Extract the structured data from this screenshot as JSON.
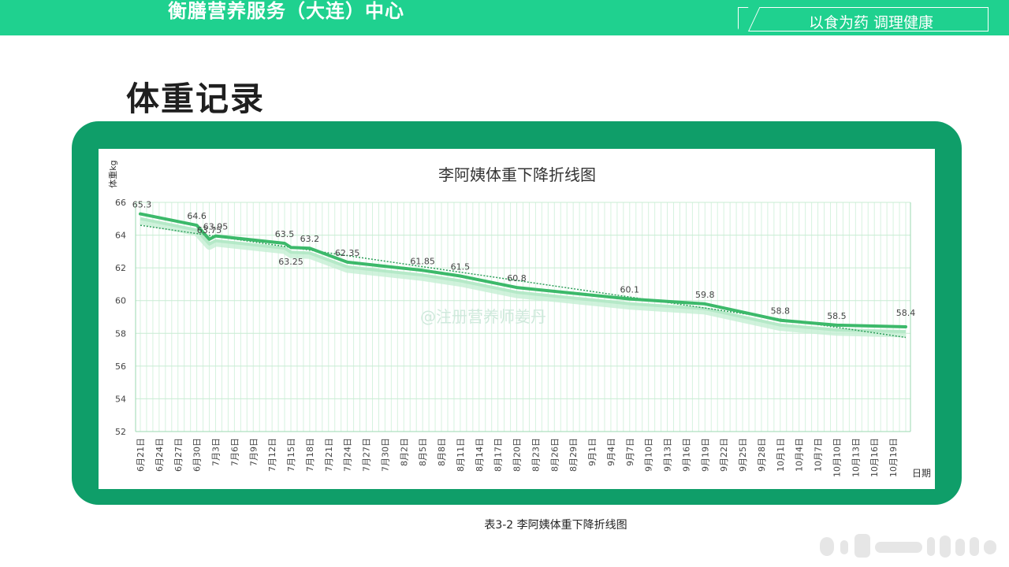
{
  "header": {
    "org_name": "衡膳营养服务（大连）中心",
    "slogan": "以食为药 调理健康",
    "bg_color": "#1fd18f"
  },
  "page": {
    "title": "体重记录",
    "caption": "表3-2    李阿姨体重下降折线图",
    "frame_color": "#0f9e69"
  },
  "chart_data": {
    "type": "line",
    "title": "李阿姨体重下降折线图",
    "ylabel": "体重kg",
    "xlabel": "日期",
    "ylim": [
      52,
      66
    ],
    "y_ticks": [
      52,
      54,
      56,
      58,
      60,
      62,
      64,
      66
    ],
    "grid": true,
    "trendline": true,
    "watermark": "@注册营养师姜丹",
    "line_color": "#3cb96a",
    "x_ticks": [
      "6月21日",
      "6月24日",
      "6月27日",
      "6月30日",
      "7月3日",
      "7月6日",
      "7月9日",
      "7月12日",
      "7月15日",
      "7月18日",
      "7月21日",
      "7月24日",
      "7月27日",
      "7月30日",
      "8月2日",
      "8月5日",
      "8月8日",
      "8月11日",
      "8月14日",
      "8月17日",
      "8月20日",
      "8月23日",
      "8月26日",
      "8月29日",
      "9月1日",
      "9月4日",
      "9月7日",
      "9月10日",
      "9月13日",
      "9月16日",
      "9月19日",
      "9月22日",
      "9月25日",
      "9月28日",
      "10月1日",
      "10月4日",
      "10月7日",
      "10月10日",
      "10月13日",
      "10月16日",
      "10月19日"
    ],
    "points": [
      {
        "x": "6月21日",
        "y": 65.3,
        "label": "65.3"
      },
      {
        "x": "6月30日",
        "y": 64.6,
        "label": "64.6"
      },
      {
        "x": "7月2日",
        "y": 63.75,
        "label": "63.75"
      },
      {
        "x": "7月3日",
        "y": 63.95,
        "label": "63.95"
      },
      {
        "x": "7月14日",
        "y": 63.5,
        "label": "63.5"
      },
      {
        "x": "7月15日",
        "y": 63.25,
        "label": "63.25"
      },
      {
        "x": "7月18日",
        "y": 63.2,
        "label": "63.2"
      },
      {
        "x": "7月24日",
        "y": 62.35,
        "label": "62.35"
      },
      {
        "x": "8月5日",
        "y": 61.85,
        "label": "61.85"
      },
      {
        "x": "8月11日",
        "y": 61.5,
        "label": "61.5"
      },
      {
        "x": "8月20日",
        "y": 60.8,
        "label": "60.8"
      },
      {
        "x": "9月7日",
        "y": 60.1,
        "label": "60.1"
      },
      {
        "x": "9月19日",
        "y": 59.8,
        "label": "59.8"
      },
      {
        "x": "10月1日",
        "y": 58.8,
        "label": "58.8"
      },
      {
        "x": "10月10日",
        "y": 58.5,
        "label": "58.5"
      },
      {
        "x": "10月21日",
        "y": 58.4,
        "label": "58.4"
      }
    ],
    "trend": {
      "start": 64.6,
      "end": 57.75
    }
  }
}
